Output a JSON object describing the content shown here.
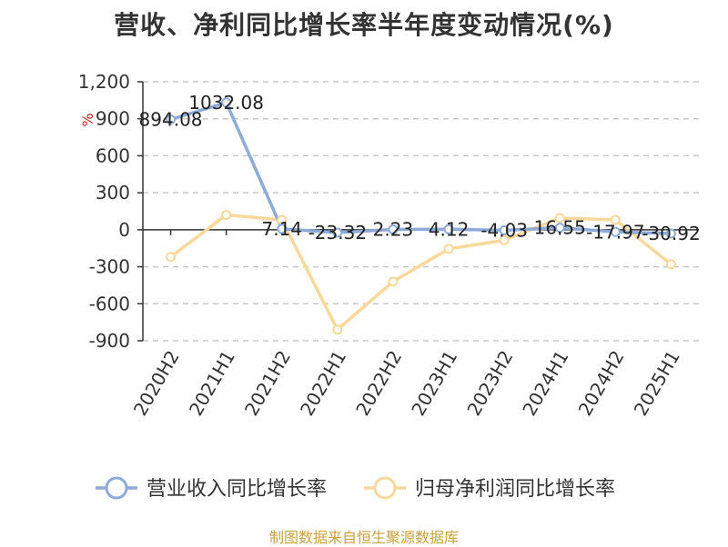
{
  "title": "营收、净利同比增长率半年度变动情况(%)",
  "footer": "制图数据来自恒生聚源数据库",
  "colors": {
    "revenue": "#8eabd8",
    "profit": "#fad89b",
    "unit": "#d22222",
    "footer": "#c8a23e"
  },
  "chart_data": {
    "type": "line",
    "categories": [
      "2020H2",
      "2021H1",
      "2021H2",
      "2022H1",
      "2022H2",
      "2023H1",
      "2023H2",
      "2024H1",
      "2024H2",
      "2025H1"
    ],
    "ylabel": "%",
    "ylim": [
      -900,
      1200
    ],
    "yticks": [
      1200,
      900,
      600,
      300,
      0,
      -300,
      -600,
      -900
    ],
    "ytick_labels": [
      "1,200",
      "900",
      "600",
      "300",
      "0",
      "-300",
      "-600",
      "-900"
    ],
    "grid": true,
    "legend_position": "bottom",
    "series": [
      {
        "name": "营业收入同比增长率",
        "values": [
          894.08,
          1032.08,
          7.14,
          -23.32,
          2.23,
          4.12,
          -4.03,
          16.55,
          -17.97,
          -30.92
        ],
        "labels": [
          "894.08",
          "1032.08",
          "7.14",
          "-23.32",
          "2.23",
          "4.12",
          "-4.03",
          "16.55",
          "-17.97",
          "-30.92"
        ]
      },
      {
        "name": "归母净利润同比增长率",
        "values": [
          -220,
          120,
          80,
          -810,
          -420,
          -155,
          -85,
          95,
          80,
          -280
        ]
      }
    ]
  }
}
